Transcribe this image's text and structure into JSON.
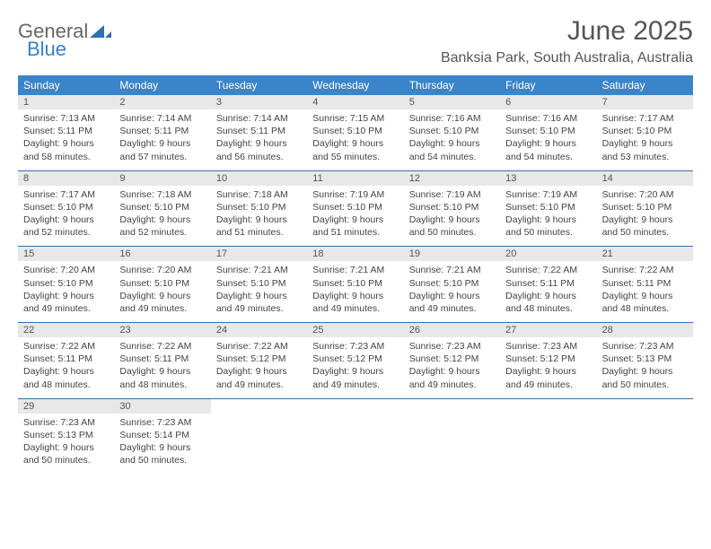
{
  "brand": {
    "general": "General",
    "blue": "Blue"
  },
  "title": "June 2025",
  "location": "Banksia Park, South Australia, Australia",
  "colors": {
    "header_bg": "#3a85c9",
    "header_text": "#ffffff",
    "strip_bg": "#e8e8e8",
    "strip_text": "#555555",
    "rule": "#3a6fa8",
    "body_text": "#444444",
    "title_text": "#555555",
    "brand_gray": "#666666",
    "brand_blue": "#3a7fc4",
    "page_bg": "#ffffff"
  },
  "weekdays": [
    "Sunday",
    "Monday",
    "Tuesday",
    "Wednesday",
    "Thursday",
    "Friday",
    "Saturday"
  ],
  "weeks": [
    [
      {
        "n": "1",
        "sr": "7:13 AM",
        "ss": "5:11 PM",
        "dl": "9 hours and 58 minutes."
      },
      {
        "n": "2",
        "sr": "7:14 AM",
        "ss": "5:11 PM",
        "dl": "9 hours and 57 minutes."
      },
      {
        "n": "3",
        "sr": "7:14 AM",
        "ss": "5:11 PM",
        "dl": "9 hours and 56 minutes."
      },
      {
        "n": "4",
        "sr": "7:15 AM",
        "ss": "5:10 PM",
        "dl": "9 hours and 55 minutes."
      },
      {
        "n": "5",
        "sr": "7:16 AM",
        "ss": "5:10 PM",
        "dl": "9 hours and 54 minutes."
      },
      {
        "n": "6",
        "sr": "7:16 AM",
        "ss": "5:10 PM",
        "dl": "9 hours and 54 minutes."
      },
      {
        "n": "7",
        "sr": "7:17 AM",
        "ss": "5:10 PM",
        "dl": "9 hours and 53 minutes."
      }
    ],
    [
      {
        "n": "8",
        "sr": "7:17 AM",
        "ss": "5:10 PM",
        "dl": "9 hours and 52 minutes."
      },
      {
        "n": "9",
        "sr": "7:18 AM",
        "ss": "5:10 PM",
        "dl": "9 hours and 52 minutes."
      },
      {
        "n": "10",
        "sr": "7:18 AM",
        "ss": "5:10 PM",
        "dl": "9 hours and 51 minutes."
      },
      {
        "n": "11",
        "sr": "7:19 AM",
        "ss": "5:10 PM",
        "dl": "9 hours and 51 minutes."
      },
      {
        "n": "12",
        "sr": "7:19 AM",
        "ss": "5:10 PM",
        "dl": "9 hours and 50 minutes."
      },
      {
        "n": "13",
        "sr": "7:19 AM",
        "ss": "5:10 PM",
        "dl": "9 hours and 50 minutes."
      },
      {
        "n": "14",
        "sr": "7:20 AM",
        "ss": "5:10 PM",
        "dl": "9 hours and 50 minutes."
      }
    ],
    [
      {
        "n": "15",
        "sr": "7:20 AM",
        "ss": "5:10 PM",
        "dl": "9 hours and 49 minutes."
      },
      {
        "n": "16",
        "sr": "7:20 AM",
        "ss": "5:10 PM",
        "dl": "9 hours and 49 minutes."
      },
      {
        "n": "17",
        "sr": "7:21 AM",
        "ss": "5:10 PM",
        "dl": "9 hours and 49 minutes."
      },
      {
        "n": "18",
        "sr": "7:21 AM",
        "ss": "5:10 PM",
        "dl": "9 hours and 49 minutes."
      },
      {
        "n": "19",
        "sr": "7:21 AM",
        "ss": "5:10 PM",
        "dl": "9 hours and 49 minutes."
      },
      {
        "n": "20",
        "sr": "7:22 AM",
        "ss": "5:11 PM",
        "dl": "9 hours and 48 minutes."
      },
      {
        "n": "21",
        "sr": "7:22 AM",
        "ss": "5:11 PM",
        "dl": "9 hours and 48 minutes."
      }
    ],
    [
      {
        "n": "22",
        "sr": "7:22 AM",
        "ss": "5:11 PM",
        "dl": "9 hours and 48 minutes."
      },
      {
        "n": "23",
        "sr": "7:22 AM",
        "ss": "5:11 PM",
        "dl": "9 hours and 48 minutes."
      },
      {
        "n": "24",
        "sr": "7:22 AM",
        "ss": "5:12 PM",
        "dl": "9 hours and 49 minutes."
      },
      {
        "n": "25",
        "sr": "7:23 AM",
        "ss": "5:12 PM",
        "dl": "9 hours and 49 minutes."
      },
      {
        "n": "26",
        "sr": "7:23 AM",
        "ss": "5:12 PM",
        "dl": "9 hours and 49 minutes."
      },
      {
        "n": "27",
        "sr": "7:23 AM",
        "ss": "5:12 PM",
        "dl": "9 hours and 49 minutes."
      },
      {
        "n": "28",
        "sr": "7:23 AM",
        "ss": "5:13 PM",
        "dl": "9 hours and 50 minutes."
      }
    ],
    [
      {
        "n": "29",
        "sr": "7:23 AM",
        "ss": "5:13 PM",
        "dl": "9 hours and 50 minutes."
      },
      {
        "n": "30",
        "sr": "7:23 AM",
        "ss": "5:14 PM",
        "dl": "9 hours and 50 minutes."
      },
      null,
      null,
      null,
      null,
      null
    ]
  ],
  "labels": {
    "sunrise": "Sunrise: ",
    "sunset": "Sunset: ",
    "daylight": "Daylight: "
  }
}
